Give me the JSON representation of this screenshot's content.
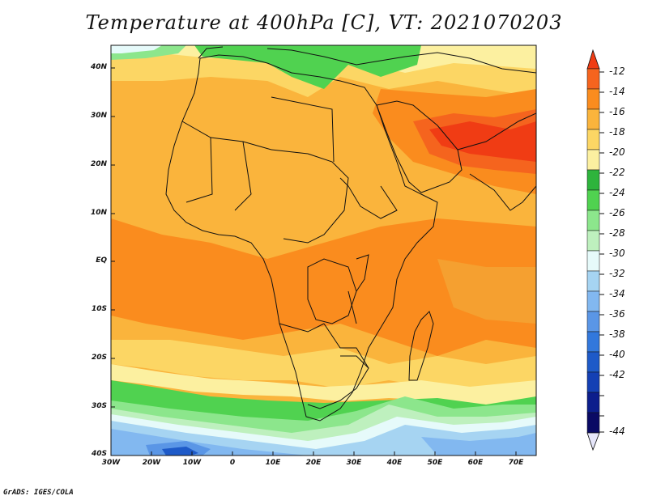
{
  "title": "Temperature at 400hPa [C], VT: 2021070203",
  "credit": "GrADS: IGES/COLA",
  "map": {
    "lat_labels": [
      "40N",
      "30N",
      "20N",
      "10N",
      "EQ",
      "10S",
      "20S",
      "30S",
      "40S"
    ],
    "lon_labels": [
      "30W",
      "20W",
      "10W",
      "0",
      "10E",
      "20E",
      "30E",
      "40E",
      "50E",
      "60E",
      "70E"
    ]
  },
  "colorbar": {
    "labels": [
      "-12",
      "-14",
      "-16",
      "-18",
      "-20",
      "-22",
      "-24",
      "-26",
      "-28",
      "-30",
      "-32",
      "-34",
      "-36",
      "-38",
      "-40",
      "-42",
      "-44"
    ],
    "colors": [
      "#f03c14",
      "#f5641e",
      "#fa8c1e",
      "#fab43c",
      "#fcd664",
      "#fcf0a0",
      "#2eb43c",
      "#50d250",
      "#8ce68c",
      "#bef0be",
      "#e6fafa",
      "#a6d4f2",
      "#82b8f0",
      "#5a96e6",
      "#3278dc",
      "#1e5ac8",
      "#1440b4",
      "#0c1e8c",
      "#e6e6fa"
    ]
  }
}
